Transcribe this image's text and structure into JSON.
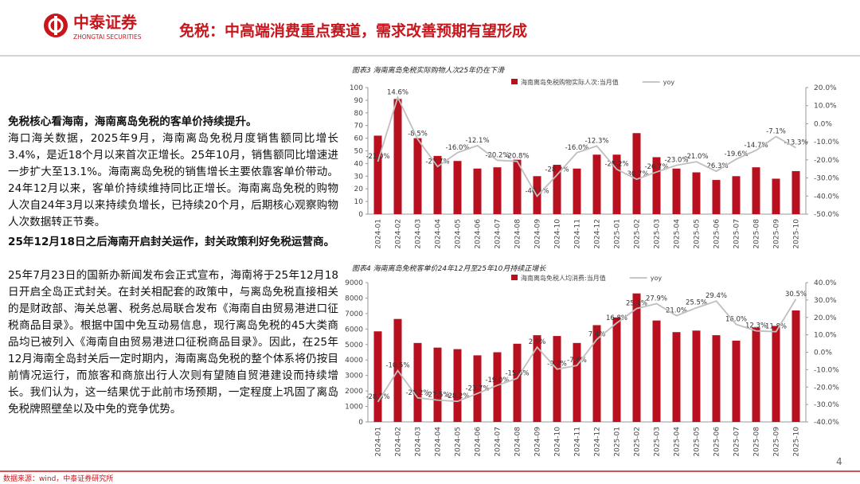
{
  "header": {
    "logo_cn": "中泰证券",
    "logo_en": "ZHONGTAI SECURITIES",
    "title": "免税：中高端消费重点赛道，需求改善预期有望形成"
  },
  "text": {
    "heading1": "免税核心看海南，海南离岛免税的客单价持续提升。",
    "para1": "海口海关数据，2025年9月，海南离岛免税月度销售额同比增长3.4%，是近18个月以来首次正增长。25年10月，销售额同比增速进一步扩大至13.1%。海南离岛免税的销售增长主要依靠客单价带动。24年12月以来，客单价持续维持同比正增长。海南离岛免税的购物人次自24年3月以来持续负增长，已持续20个月，后期核心观察购物人次数据转正节奏。",
    "heading2": "25年12月18日之后海南开启封关运作，封关政策利好免税运营商。",
    "para2": "25年7月23日的国新办新闻发布会正式宣布，海南将于25年12月18日开启全岛正式封关。在封关相配套的政策中，与离岛免税直接相关的是财政部、海关总署、税务总局联合发布《海南自由贸易港进口征税商品目录》。根据中国中免互动易信息，现行离岛免税的45大类商品均已被列入《海南自由贸易港进口征税商品目录》。因此，在25年12月海南全岛封关后一定时期内，海南离岛免税的整个体系将仍按目前情况运行，而旅客和商旅出行人次则有望随自贸港建设而持续增长。我们认为，这一结果优于此前市场预期，一定程度上巩固了离岛免税牌照壁垒以及中免的竞争优势。"
  },
  "footer": {
    "source": "数据来源：wind，中泰证券研究所",
    "page": "4"
  },
  "chart_data": [
    {
      "type": "bar",
      "title": "图表3 海南离岛免税实际购物人次25年仍在下滑",
      "categories": [
        "2024-01",
        "2024-02",
        "2024-03",
        "2024-04",
        "2024-05",
        "2024-06",
        "2024-07",
        "2024-08",
        "2024-09",
        "2024-10",
        "2024-11",
        "2024-12",
        "2025-01",
        "2025-02",
        "2025-03",
        "2025-04",
        "2025-05",
        "2025-06",
        "2025-07",
        "2025-08",
        "2025-09",
        "2025-10"
      ],
      "series": [
        {
          "name": "海南离岛免税购物实际人次:当月值",
          "color": "#b8101f",
          "values": [
            62,
            91,
            60,
            46,
            42,
            36,
            37,
            43,
            30,
            39,
            36,
            47,
            47,
            64,
            45,
            36,
            33,
            27,
            30,
            37,
            28,
            34
          ]
        },
        {
          "name": "yoy",
          "color": "#bfbfbf",
          "axis": "y2",
          "values": [
            -21.0,
            14.6,
            -8.5,
            -23.7,
            -16.0,
            -12.1,
            -20.2,
            -20.8,
            -40.1,
            -28.3,
            -16.0,
            -12.3,
            -25.2,
            -30.7,
            -26.7,
            -23.0,
            -21.0,
            -26.3,
            -19.6,
            -14.7,
            -7.1,
            -13.3
          ],
          "value_labels": [
            "-21.0%",
            "14.6%",
            "-8.5%",
            "-23.7%",
            "-16.0%",
            "-12.1%",
            "-20.2%",
            "-20.8%",
            "-40.1%",
            "-28.3%",
            "-16.0%",
            "-12.3%",
            "-25.2%",
            "-30.7%",
            "-26.7%",
            "-23.0%",
            "-21.0%",
            "-26.3%",
            "-19.6%",
            "-14.7%",
            "-7.1%",
            "-13.3%"
          ]
        }
      ],
      "ylim": [
        0,
        100
      ],
      "yticks": [
        0,
        10,
        20,
        30,
        40,
        50,
        60,
        70,
        80,
        90,
        100
      ],
      "y2lim": [
        -50,
        20
      ],
      "y2ticks": [
        {
          "value": -50,
          "label": "-50.0%"
        },
        {
          "value": -40,
          "label": "-40.0%"
        },
        {
          "value": -30,
          "label": "-30.0%"
        },
        {
          "value": -20,
          "label": "-20.0%"
        },
        {
          "value": -10,
          "label": "-10.0%"
        },
        {
          "value": 0,
          "label": "0.0%"
        },
        {
          "value": 10,
          "label": "10.0%"
        },
        {
          "value": 20,
          "label": "20.0%"
        }
      ],
      "legend": "top"
    },
    {
      "type": "bar",
      "title": "图表4 海南离岛免税客单价24年12月至25年10月持续正增长",
      "categories": [
        "2024-01",
        "2024-02",
        "2024-03",
        "2024-04",
        "2024-05",
        "2024-06",
        "2024-07",
        "2024-08",
        "2024-09",
        "2024-10",
        "2024-11",
        "2024-12",
        "2025-01",
        "2025-02",
        "2025-03",
        "2025-04",
        "2025-05",
        "2025-06",
        "2025-07",
        "2025-08",
        "2025-09",
        "2025-10"
      ],
      "series": [
        {
          "name": "海南离岛免税人均消费:当月值",
          "color": "#b8101f",
          "values": [
            5850,
            6650,
            5100,
            4800,
            4700,
            4300,
            4500,
            5050,
            5600,
            5550,
            5100,
            6250,
            6750,
            8300,
            6550,
            5800,
            5900,
            5600,
            5250,
            6100,
            6200,
            7200
          ]
        },
        {
          "name": "yoy",
          "color": "#bfbfbf",
          "axis": "y2",
          "values": [
            -28.5,
            -10.5,
            -26.2,
            -27.5,
            -28.2,
            -23.7,
            -19.0,
            -15.0,
            2.9,
            -9.7,
            -7.6,
            7.4,
            16.8,
            25.1,
            27.9,
            21.0,
            25.5,
            29.4,
            16.0,
            12.3,
            11.8,
            30.5
          ],
          "value_labels": [
            "-28.5%",
            "-10.5%",
            "-26.2%",
            "-27.5%",
            "-28.2%",
            "-23.7%",
            "-19.0%",
            "-15.0%",
            "2.9%",
            "-9.7%",
            "-7.6%",
            "7.4%",
            "16.8%",
            "25.1%",
            "27.9%",
            "21.0%",
            "25.5%",
            "29.4%",
            "16.0%",
            "12.3%",
            "11.8%",
            "30.5%"
          ]
        }
      ],
      "ylim": [
        0,
        9000
      ],
      "yticks": [
        0,
        1000,
        2000,
        3000,
        4000,
        5000,
        6000,
        7000,
        8000,
        9000
      ],
      "y2lim": [
        -40,
        40
      ],
      "y2ticks": [
        {
          "value": -40,
          "label": "-40.0%"
        },
        {
          "value": -30,
          "label": "-30.0%"
        },
        {
          "value": -20,
          "label": "-20.0%"
        },
        {
          "value": -10,
          "label": "-10.0%"
        },
        {
          "value": 0,
          "label": "0.0%"
        },
        {
          "value": 10,
          "label": "10.0%"
        },
        {
          "value": 20,
          "label": "20.0%"
        },
        {
          "value": 30,
          "label": "30.0%"
        },
        {
          "value": 40,
          "label": "40.0%"
        }
      ],
      "legend": "top"
    }
  ]
}
